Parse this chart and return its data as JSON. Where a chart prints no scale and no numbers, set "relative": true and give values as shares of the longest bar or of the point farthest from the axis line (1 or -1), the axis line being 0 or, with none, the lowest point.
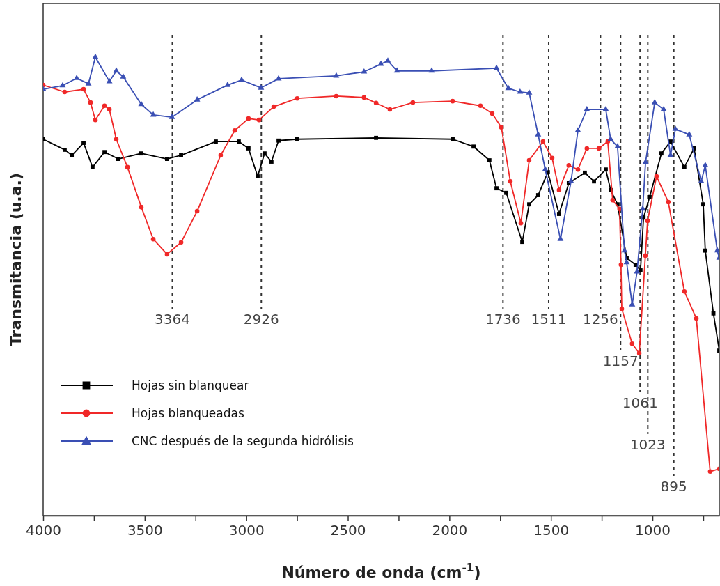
{
  "chart_data": {
    "type": "line",
    "relative": true,
    "xlabel": "Número de onda (cm$^{-1}$)",
    "ylabel": "Transmitancia (u.a.)",
    "legend": "bottom left",
    "xlim": [
      4000,
      671
    ],
    "xticks": [
      4000,
      {
        "value": 3750,
        "label": null
      },
      3500,
      {
        "value": 3250,
        "label": null
      },
      3000,
      {
        "value": 2750,
        "label": null
      },
      2500,
      {
        "value": 2250,
        "label": null
      },
      2000,
      {
        "value": 1750,
        "label": null
      },
      1500,
      {
        "value": 1250,
        "label": null
      },
      1000,
      {
        "value": 750,
        "label": null
      }
    ],
    "series": [
      {
        "name": "Hojas sin blanquear",
        "color": "#000000",
        "marker": "square",
        "x": [
          4000,
          3894,
          3859,
          3801,
          3757,
          3698,
          3630,
          3517,
          3390,
          3321,
          3150,
          3037,
          2989,
          2944,
          2910,
          2876,
          2841,
          2749,
          2361,
          1984,
          1881,
          1803,
          1768,
          1720,
          1641,
          1607,
          1563,
          1515,
          1460,
          1412,
          1333,
          1288,
          1230,
          1206,
          1172,
          1127,
          1083,
          1059,
          1044,
          1014,
          956,
          911,
          843,
          795,
          750,
          740,
          700,
          671
        ],
        "values": [
          0.821,
          0.798,
          0.786,
          0.813,
          0.76,
          0.793,
          0.778,
          0.79,
          0.778,
          0.786,
          0.816,
          0.816,
          0.801,
          0.74,
          0.79,
          0.772,
          0.818,
          0.821,
          0.824,
          0.821,
          0.805,
          0.775,
          0.714,
          0.704,
          0.597,
          0.679,
          0.699,
          0.749,
          0.658,
          0.725,
          0.748,
          0.729,
          0.755,
          0.71,
          0.679,
          0.562,
          0.547,
          0.535,
          0.65,
          0.695,
          0.79,
          0.816,
          0.76,
          0.801,
          0.679,
          0.578,
          0.441,
          0.36
        ]
      },
      {
        "name": "Hojas blanqueadas",
        "color": "#f02828",
        "marker": "circle",
        "x": [
          4000,
          3894,
          3801,
          3767,
          3743,
          3698,
          3674,
          3640,
          3585,
          3517,
          3458,
          3390,
          3321,
          3242,
          3126,
          3057,
          2989,
          2937,
          2865,
          2749,
          2557,
          2420,
          2361,
          2293,
          2180,
          1984,
          1847,
          1789,
          1744,
          1700,
          1648,
          1607,
          1539,
          1494,
          1460,
          1412,
          1367,
          1323,
          1264,
          1220,
          1196,
          1162,
          1155,
          1151,
          1100,
          1065,
          1035,
          1024,
          980,
          922,
          843,
          784,
          716,
          671
        ],
        "values": [
          0.939,
          0.924,
          0.93,
          0.901,
          0.863,
          0.894,
          0.886,
          0.821,
          0.76,
          0.673,
          0.603,
          0.57,
          0.596,
          0.664,
          0.786,
          0.84,
          0.866,
          0.863,
          0.892,
          0.91,
          0.915,
          0.912,
          0.9,
          0.886,
          0.901,
          0.904,
          0.894,
          0.877,
          0.847,
          0.729,
          0.638,
          0.775,
          0.816,
          0.78,
          0.71,
          0.764,
          0.755,
          0.801,
          0.801,
          0.816,
          0.688,
          0.669,
          0.547,
          0.451,
          0.375,
          0.354,
          0.567,
          0.643,
          0.74,
          0.684,
          0.489,
          0.43,
          0.096,
          0.102
        ]
      },
      {
        "name": "CNC después de la segunda hidrólisis",
        "color": "#3a4fb4",
        "marker": "triangle",
        "x": [
          4000,
          3904,
          3835,
          3777,
          3743,
          3674,
          3640,
          3606,
          3517,
          3458,
          3366,
          3242,
          3092,
          3023,
          2927,
          2841,
          2557,
          2420,
          2337,
          2303,
          2258,
          2087,
          1768,
          1710,
          1652,
          1607,
          1563,
          1528,
          1453,
          1401,
          1367,
          1323,
          1230,
          1206,
          1172,
          1138,
          1127,
          1100,
          1076,
          1048,
          1034,
          989,
          945,
          911,
          887,
          819,
          760,
          740,
          681,
          671
        ],
        "values": [
          0.93,
          0.938,
          0.954,
          0.942,
          1,
          0.947,
          0.97,
          0.957,
          0.897,
          0.874,
          0.869,
          0.907,
          0.939,
          0.95,
          0.933,
          0.953,
          0.959,
          0.968,
          0.985,
          0.992,
          0.97,
          0.97,
          0.976,
          0.932,
          0.924,
          0.922,
          0.831,
          0.755,
          0.603,
          0.729,
          0.84,
          0.886,
          0.886,
          0.821,
          0.805,
          0.578,
          0.552,
          0.46,
          0.532,
          0.669,
          0.771,
          0.901,
          0.886,
          0.786,
          0.843,
          0.831,
          0.729,
          0.764,
          0.578,
          0.562
        ]
      }
    ],
    "ref_lines": [
      {
        "axis": "x",
        "value": 3364,
        "label": "3364",
        "color": "#333333",
        "line_style": "dashed"
      },
      {
        "axis": "x",
        "value": 2926,
        "label": "2926",
        "color": "#333333",
        "line_style": "dashed"
      },
      {
        "axis": "x",
        "value": 1736,
        "label": "1736",
        "color": "#333333",
        "line_style": "dashed"
      },
      {
        "axis": "x",
        "value": 1511,
        "label": "1511",
        "color": "#333333",
        "line_style": "dashed"
      },
      {
        "axis": "x",
        "value": 1256,
        "label": "1256",
        "color": "#333333",
        "line_style": "dashed"
      },
      {
        "axis": "x",
        "value": 1157,
        "label": "1157",
        "color": "#333333",
        "line_style": "dashed"
      },
      {
        "axis": "x",
        "value": 1061,
        "label": "1061",
        "color": "#333333",
        "line_style": "dashed"
      },
      {
        "axis": "x",
        "value": 1023,
        "label": "1023",
        "color": "#333333",
        "line_style": "dashed"
      },
      {
        "axis": "x",
        "value": 895,
        "label": "895",
        "color": "#333333",
        "line_style": "dashed"
      }
    ]
  }
}
